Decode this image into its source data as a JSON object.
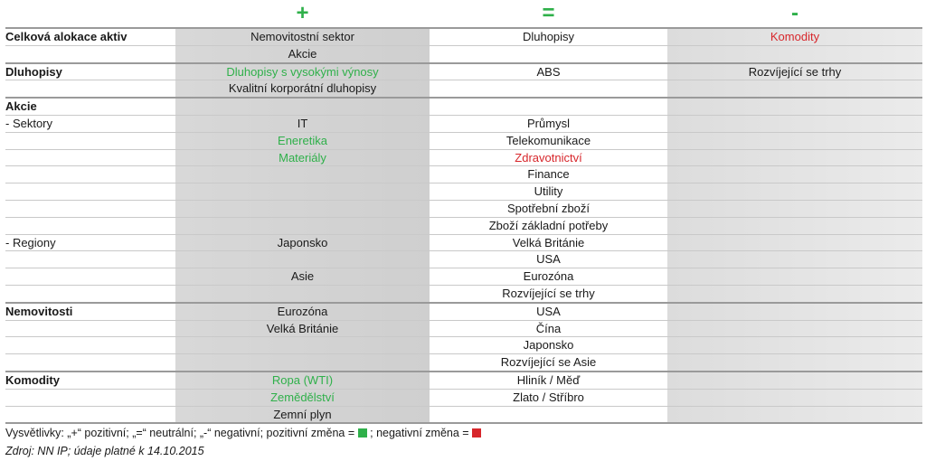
{
  "symbols": {
    "positive": "+",
    "neutral": "=",
    "negative": "-"
  },
  "colors": {
    "positive": "#2fb04a",
    "negative": "#d7262b"
  },
  "rows": [
    {
      "label": "Celková alokace aktiv",
      "bold": true,
      "section": true,
      "plus": "Nemovitostní sektor",
      "eq": "Dluhopisy",
      "minus": "Komodity",
      "minus_color": "red"
    },
    {
      "label": "",
      "plus": "Akcie",
      "eq": "",
      "minus": ""
    },
    {
      "label": "Dluhopisy",
      "bold": true,
      "section": true,
      "plus": "Dluhopisy s vysokými výnosy",
      "plus_color": "green",
      "eq": "ABS",
      "minus": "Rozvíjející se trhy"
    },
    {
      "label": "",
      "plus": "Kvalitní korporátní dluhopisy",
      "eq": "",
      "minus": ""
    },
    {
      "label": "Akcie",
      "bold": true,
      "section": true,
      "plus": "",
      "eq": "",
      "minus": ""
    },
    {
      "label": "- Sektory",
      "plus": "IT",
      "eq": "Průmysl",
      "minus": ""
    },
    {
      "label": "",
      "plus": "Eneretika",
      "plus_color": "green",
      "eq": "Telekomunikace",
      "minus": ""
    },
    {
      "label": "",
      "plus": "Materiály",
      "plus_color": "green",
      "eq": "Zdravotnictví",
      "eq_color": "red",
      "minus": ""
    },
    {
      "label": "",
      "plus": "",
      "eq": "Finance",
      "minus": ""
    },
    {
      "label": "",
      "plus": "",
      "eq": "Utility",
      "minus": ""
    },
    {
      "label": "",
      "plus": "",
      "eq": "Spotřební zboží",
      "minus": ""
    },
    {
      "label": "",
      "plus": "",
      "eq": "Zboží základní potřeby",
      "minus": ""
    },
    {
      "label": "- Regiony",
      "plus": "Japonsko",
      "eq": "Velká Británie",
      "minus": ""
    },
    {
      "label": "",
      "plus": "",
      "eq": "USA",
      "minus": ""
    },
    {
      "label": "",
      "plus": "Asie",
      "eq": "Eurozóna",
      "minus": ""
    },
    {
      "label": "",
      "plus": "",
      "eq": "Rozvíjející se trhy",
      "minus": ""
    },
    {
      "label": "Nemovitosti",
      "bold": true,
      "section": true,
      "plus": "Eurozóna",
      "eq": "USA",
      "minus": ""
    },
    {
      "label": "",
      "plus": "Velká Británie",
      "eq": "Čína",
      "minus": ""
    },
    {
      "label": "",
      "plus": "",
      "eq": "Japonsko",
      "minus": ""
    },
    {
      "label": "",
      "plus": "",
      "eq": "Rozvíjející se Asie",
      "minus": ""
    },
    {
      "label": "Komodity",
      "bold": true,
      "section": true,
      "plus": "Ropa (WTI)",
      "plus_color": "green",
      "eq": "Hliník / Měď",
      "minus": ""
    },
    {
      "label": "",
      "plus": "Zemědělství",
      "plus_color": "green",
      "eq": "Zlato / Stříbro",
      "minus": ""
    },
    {
      "label": "",
      "plus": "Zemní plyn",
      "eq": "",
      "minus": ""
    }
  ],
  "legend": {
    "part1": "Vysvětlivky: „+“ pozitivní; „=“ neutrální; „-“ negativní; pozitivní změna =",
    "part2": "; negativní změna ="
  },
  "source": "Zdroj: NN IP; údaje platné k 14.10.2015"
}
